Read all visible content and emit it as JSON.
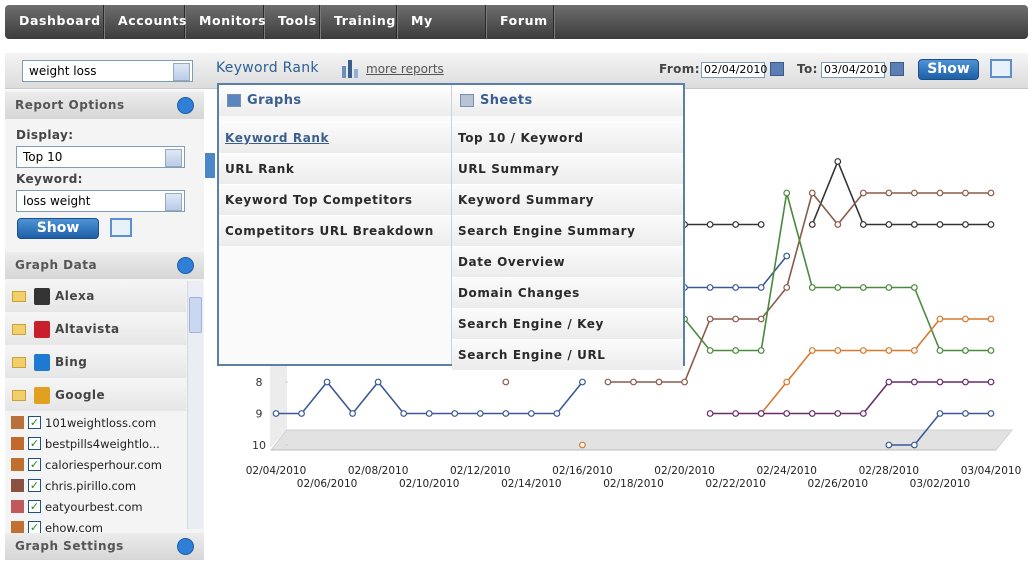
{
  "nav": [
    "Dashboard",
    "Accounts",
    "Monitors",
    "Tools",
    "Training",
    "My Profile",
    "Forum"
  ],
  "toolbar": {
    "site_select": "weight loss",
    "title": "Keyword Rank",
    "more_reports": "more reports",
    "from_label": "From:",
    "from_value": "02/04/2010",
    "to_label": "To:",
    "to_value": "03/04/2010",
    "show": "Show"
  },
  "sidebar": {
    "report_options": {
      "title": "Report Options",
      "display_label": "Display:",
      "display_value": "Top 10",
      "keyword_label": "Keyword:",
      "keyword_value": "loss weight",
      "show": "Show"
    },
    "graph_data": {
      "title": "Graph Data",
      "engines": [
        "Alexa",
        "Altavista",
        "Bing",
        "Google"
      ],
      "sites": [
        "101weightloss.com",
        "bestpills4weightlo...",
        "caloriesperhour.com",
        "chris.pirillo.com",
        "eatyourbest.com",
        "ehow.com"
      ]
    },
    "graph_settings": {
      "title": "Graph Settings"
    }
  },
  "menu": {
    "graphs": {
      "title": "Graphs",
      "items": [
        "Keyword Rank",
        "URL Rank",
        "Keyword Top Competitors",
        "Competitors URL Breakdown"
      ]
    },
    "sheets": {
      "title": "Sheets",
      "items": [
        "Top 10 / Keyword",
        "URL Summary",
        "Keyword Summary",
        "Search Engine Summary",
        "Date Overview",
        "Domain Changes",
        "Search Engine / Key",
        "Search Engine / URL"
      ]
    }
  },
  "chart_data": {
    "type": "line",
    "x": [
      "02/04/2010",
      null,
      "02/06/2010",
      null,
      "02/08/2010",
      null,
      "02/10/2010",
      null,
      "02/12/2010",
      null,
      "02/14/2010",
      null,
      "02/16/2010",
      null,
      "02/18/2010",
      null,
      "02/20/2010",
      null,
      "02/22/2010",
      null,
      "02/24/2010",
      null,
      "02/26/2010",
      null,
      "02/28/2010",
      null,
      "03/02/2010",
      null,
      "03/04/2010"
    ],
    "ylim": [
      10,
      0
    ],
    "yticks": [
      8,
      9,
      10
    ],
    "series": [
      {
        "color": "#3b5998",
        "values": [
          9,
          9,
          8,
          9,
          8,
          9,
          9,
          9,
          9,
          9,
          9,
          9,
          8,
          null,
          null,
          null,
          5,
          5,
          5,
          5,
          4,
          null,
          null,
          null,
          10,
          10,
          9,
          9,
          9
        ]
      },
      {
        "color": "#333333",
        "values": [
          null,
          null,
          null,
          null,
          null,
          null,
          null,
          null,
          null,
          null,
          null,
          null,
          null,
          null,
          null,
          null,
          3,
          3,
          3,
          3,
          null,
          3,
          1,
          3,
          3,
          3,
          3,
          3,
          3
        ]
      },
      {
        "color": "#8b5a4a",
        "values": [
          null,
          null,
          null,
          null,
          null,
          null,
          null,
          null,
          null,
          8,
          null,
          null,
          null,
          8,
          8,
          8,
          8,
          6,
          6,
          6,
          5,
          2,
          3,
          2,
          2,
          2,
          2,
          2,
          2
        ]
      },
      {
        "color": "#4a8a3c",
        "values": [
          null,
          null,
          null,
          null,
          null,
          null,
          null,
          null,
          null,
          null,
          null,
          null,
          null,
          null,
          null,
          null,
          6,
          7,
          7,
          7,
          2,
          5,
          5,
          5,
          5,
          5,
          7,
          7,
          7
        ]
      },
      {
        "color": "#d9782a",
        "values": [
          null,
          null,
          null,
          null,
          null,
          null,
          null,
          null,
          null,
          null,
          null,
          null,
          10,
          null,
          null,
          null,
          null,
          null,
          null,
          9,
          8,
          7,
          7,
          7,
          7,
          7,
          6,
          6,
          6
        ]
      },
      {
        "color": "#6a2c6a",
        "values": [
          null,
          null,
          null,
          null,
          null,
          null,
          null,
          null,
          null,
          null,
          null,
          null,
          null,
          null,
          null,
          null,
          null,
          9,
          9,
          9,
          9,
          9,
          9,
          9,
          8,
          8,
          8,
          8,
          8
        ]
      }
    ]
  }
}
